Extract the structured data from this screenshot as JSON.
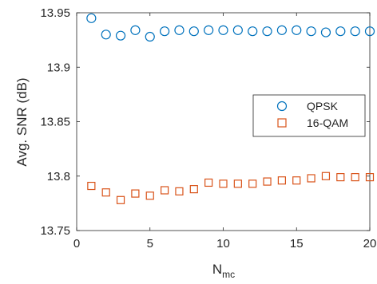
{
  "chart_data": {
    "type": "scatter",
    "title": "",
    "xlabel": "N",
    "xlabel_subscript": "mc",
    "ylabel": "Avg. SNR (dB)",
    "xlim": [
      0,
      20
    ],
    "ylim": [
      13.75,
      13.95
    ],
    "xticks": [
      0,
      5,
      10,
      15,
      20
    ],
    "yticks": [
      13.75,
      13.8,
      13.85,
      13.9,
      13.95
    ],
    "xtick_labels": [
      "0",
      "5",
      "10",
      "15",
      "20"
    ],
    "ytick_labels": [
      "13.75",
      "13.8",
      "13.85",
      "13.9",
      "13.95"
    ],
    "grid": false,
    "legend_position": "right, middle",
    "series": [
      {
        "name": "QPSK",
        "marker": "circle",
        "color": "#0072BD",
        "x": [
          1,
          2,
          3,
          4,
          5,
          6,
          7,
          8,
          9,
          10,
          11,
          12,
          13,
          14,
          15,
          16,
          17,
          18,
          19,
          20
        ],
        "values": [
          13.945,
          13.93,
          13.929,
          13.934,
          13.928,
          13.933,
          13.934,
          13.933,
          13.934,
          13.934,
          13.934,
          13.933,
          13.933,
          13.934,
          13.934,
          13.933,
          13.932,
          13.933,
          13.933,
          13.933
        ]
      },
      {
        "name": "16-QAM",
        "marker": "square",
        "color": "#D95319",
        "x": [
          1,
          2,
          3,
          4,
          5,
          6,
          7,
          8,
          9,
          10,
          11,
          12,
          13,
          14,
          15,
          16,
          17,
          18,
          19,
          20
        ],
        "values": [
          13.791,
          13.785,
          13.778,
          13.784,
          13.782,
          13.787,
          13.786,
          13.788,
          13.794,
          13.793,
          13.793,
          13.793,
          13.795,
          13.796,
          13.796,
          13.798,
          13.8,
          13.799,
          13.799,
          13.799
        ]
      }
    ]
  }
}
